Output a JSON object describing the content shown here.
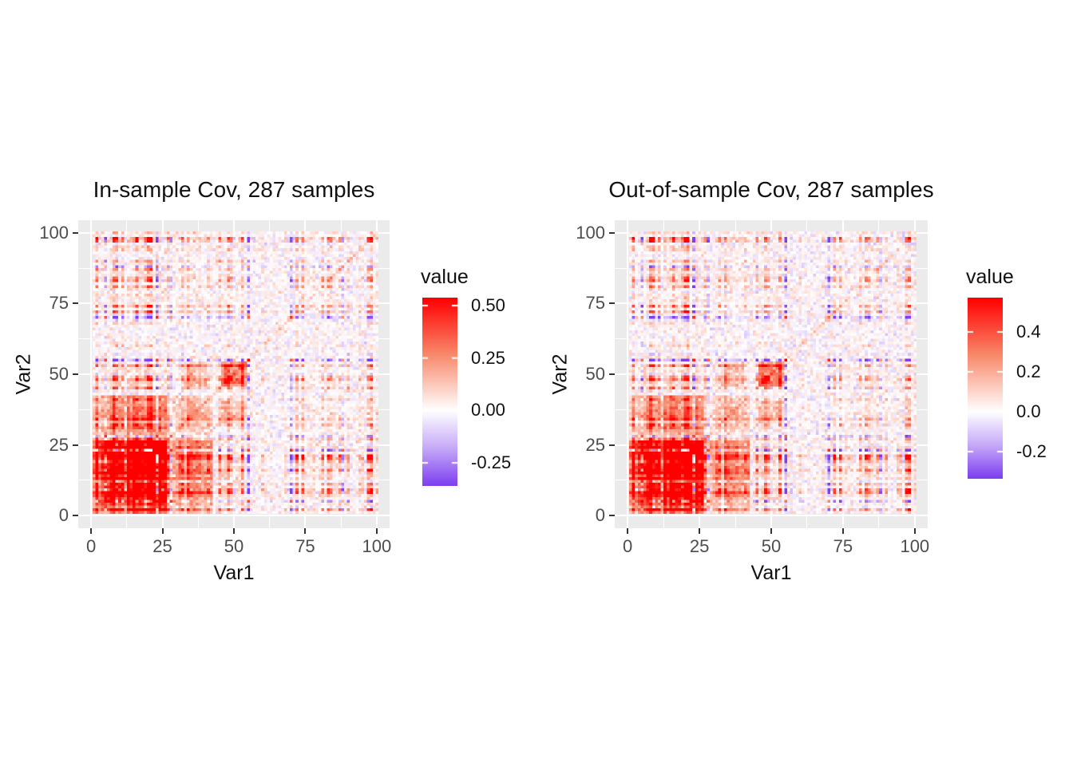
{
  "figure": {
    "background": "#FFFFFF",
    "description": "Two ggplot2-style covariance matrix heatmaps shown side by side"
  },
  "panels": [
    {
      "title": "In-sample Cov, 287 samples",
      "xlabel": "Var1",
      "ylabel": "Var2",
      "x_ticks": [
        "0",
        "25",
        "50",
        "75",
        "100"
      ],
      "y_ticks": [
        "0",
        "25",
        "50",
        "75",
        "100"
      ],
      "x_tick_values": [
        0,
        25,
        50,
        75,
        100
      ],
      "y_tick_values": [
        0,
        25,
        50,
        75,
        100
      ],
      "legend": {
        "title": "value",
        "tick_labels": [
          "0.50",
          "0.25",
          "0.00",
          "-0.25"
        ],
        "tick_values": [
          0.5,
          0.25,
          0.0,
          -0.25
        ],
        "scale_max": 0.538,
        "scale_min": -0.36
      },
      "noise_seed": 11
    },
    {
      "title": "Out-of-sample Cov, 287 samples",
      "xlabel": "Var1",
      "ylabel": "Var2",
      "x_ticks": [
        "0",
        "25",
        "50",
        "75",
        "100"
      ],
      "y_ticks": [
        "0",
        "25",
        "50",
        "75",
        "100"
      ],
      "x_tick_values": [
        0,
        25,
        50,
        75,
        100
      ],
      "y_tick_values": [
        0,
        25,
        50,
        75,
        100
      ],
      "legend": {
        "title": "value",
        "tick_labels": [
          "0.4",
          "0.2",
          "0.0",
          "-0.2"
        ],
        "tick_values": [
          0.4,
          0.2,
          0.0,
          -0.2
        ],
        "scale_max": 0.572,
        "scale_min": -0.336
      },
      "noise_seed": 23
    }
  ],
  "chart_data": {
    "type": "heatmap",
    "grid_size": 100,
    "x_variable": "Var1",
    "y_variable": "Var2",
    "x_range": [
      0,
      100
    ],
    "y_range": [
      0,
      100
    ],
    "value_variable": "value",
    "panel_value_ranges": [
      [
        -0.36,
        0.538
      ],
      [
        -0.336,
        0.572
      ]
    ],
    "minor_gridlines": [
      12.5,
      37.5,
      62.5,
      87.5
    ],
    "axis_expansion_units": 4.5,
    "colors": {
      "high": "#FF0000",
      "pos_mid": "#F8886A",
      "mid": "#FFFFFF",
      "neg_mid": "#C6AAF8",
      "low": "#7D3FF0",
      "panel_background": "#EBEBEB",
      "gridline": "#FFFFFF",
      "tick_text": "#4D4D4D",
      "title_text": "#111111",
      "tick_mark": "#333333"
    },
    "notable_features": [
      "strong positive (red) covariance block among variables ~1-25",
      "moderate positive extension of that block to variables ~26-40",
      "secondary positive cluster around variables ~32-39",
      "bright positive cross centered near variable ~50",
      "near-zero (white) band for variables ~56-66",
      "striped moderate positive block for variables ~67-100",
      "faint positive diagonal (variance) line across the matrix",
      "scattered negative (purple) stripes from sign-flipped variables",
      "both panels depict the same covariance structure (in-sample vs out-of-sample, 287 samples)"
    ],
    "generator": {
      "note": "cell values are procedurally regenerated to match the visible texture; exact per-cell values are not legible in the source image",
      "loadings_seed": 7,
      "envelope_segments": [
        {
          "to": 25,
          "v": 1.35
        },
        {
          "to": 31,
          "v": 0.9
        },
        {
          "to": 39,
          "v": 1.0
        },
        {
          "to": 44,
          "v": 0.75
        },
        {
          "to": 55,
          "v": 0.95
        },
        {
          "to": 66,
          "v": 0.22
        },
        {
          "to": 88,
          "v": 0.85
        },
        {
          "to": 92,
          "v": 0.5
        },
        {
          "to": 99,
          "v": 1.0
        }
      ],
      "block_factor_weight": 0.5,
      "stripe_factor_weight": 0.42,
      "cluster_factor_weight": 0.45,
      "stripe_probability": 0.3,
      "negative_sign_probability": 0.26,
      "noise_amplitude": 0.05,
      "diagonal_boost": 0.085,
      "off_diagonal_boost": 0.025
    }
  }
}
